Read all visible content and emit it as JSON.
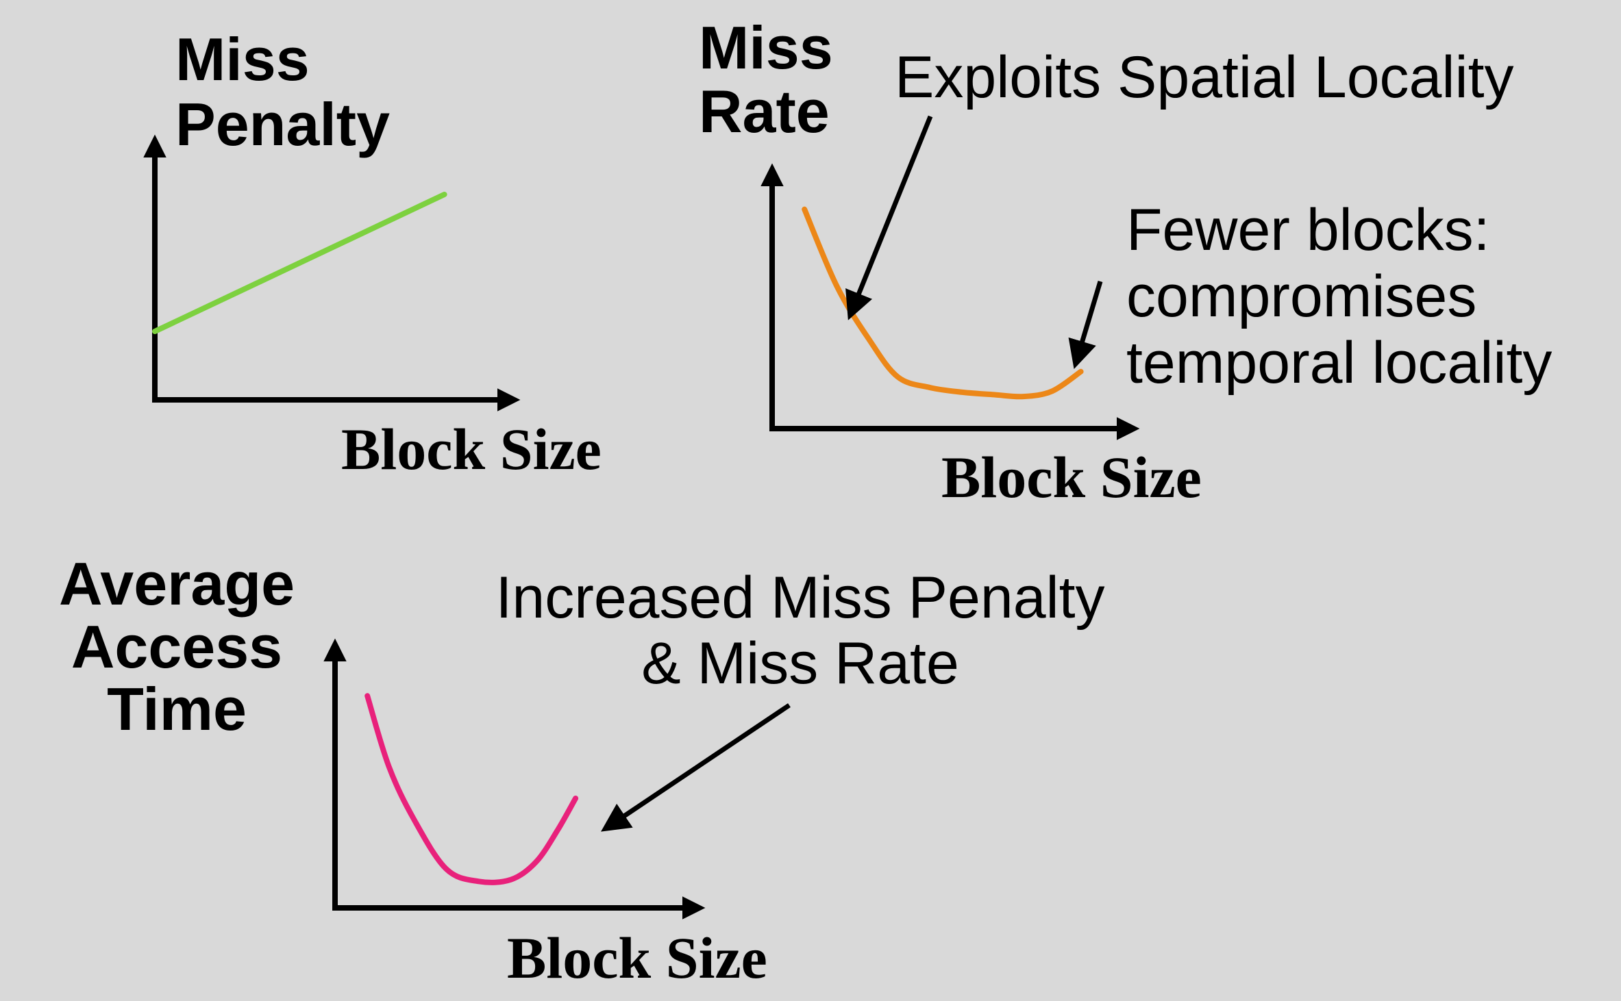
{
  "background": "#d9d9d9",
  "chart_data": [
    {
      "type": "line",
      "title": "",
      "ylabel": [
        "Miss",
        "Penalty"
      ],
      "xlabel": "Block Size",
      "color": "#7dd13f",
      "series": [
        {
          "x": [
            0,
            10
          ],
          "y": [
            2,
            6
          ]
        }
      ],
      "xlim": [
        0,
        12.4
      ],
      "ylim": [
        0,
        7.8
      ],
      "grid": false,
      "annotations": []
    },
    {
      "type": "line",
      "title": "",
      "ylabel": [
        "Miss",
        "Rate"
      ],
      "xlabel": "Block Size",
      "color": "#ec8718",
      "series": [
        {
          "x": [
            0.9,
            1.8,
            2.7,
            3.5,
            4.4,
            5.3,
            6.2,
            7.0,
            7.8,
            8.6
          ],
          "y": [
            6.15,
            4.0,
            2.5,
            1.45,
            1.15,
            1.02,
            0.95,
            0.9,
            1.05,
            1.6
          ]
        }
      ],
      "xlim": [
        0,
        10
      ],
      "ylim": [
        0,
        7.2
      ],
      "grid": false,
      "annotations": [
        {
          "text": [
            "Exploits Spatial Locality"
          ],
          "target_x": 2.3,
          "target_y": 3.1
        },
        {
          "text": [
            "Fewer blocks:",
            "compromises",
            "temporal locality"
          ],
          "target_x": 8.5,
          "target_y": 1.6
        }
      ]
    },
    {
      "type": "line",
      "title": "",
      "ylabel": [
        "Average",
        "Access",
        "Time"
      ],
      "xlabel": "Block Size",
      "color": "#e8217b",
      "series": [
        {
          "x": [
            0.9,
            1.5,
            2.2,
            3.1,
            4.0,
            4.9,
            5.6,
            6.2,
            6.7
          ],
          "y": [
            6.0,
            4.0,
            2.5,
            1.1,
            0.75,
            0.8,
            1.3,
            2.2,
            3.1
          ]
        }
      ],
      "xlim": [
        0,
        10
      ],
      "ylim": [
        0,
        7.4
      ],
      "grid": false,
      "annotations": [
        {
          "text": [
            "Increased Miss Penalty",
            "& Miss Rate"
          ],
          "target_x": 7.4,
          "target_y": 2.3
        }
      ]
    }
  ]
}
